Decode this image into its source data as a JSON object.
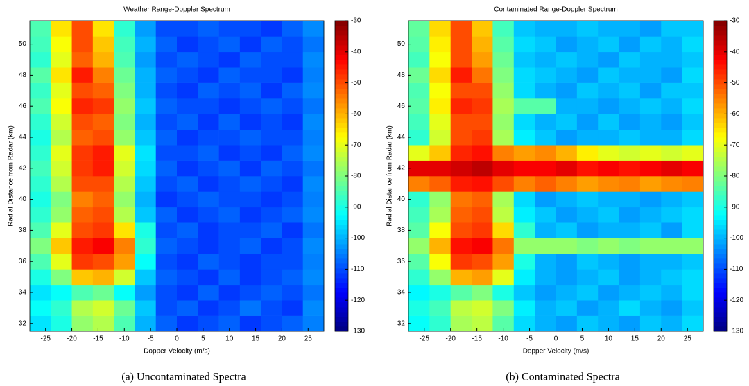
{
  "chart_data": [
    {
      "type": "heatmap",
      "title": "Weather Range-Doppler Spectrum",
      "x_label": "Dopper Velocity (m/s)",
      "y_label": "Radial Distance from Radar (km)",
      "caption": "(a)  Uncontaminated Spectra",
      "x": [
        -26,
        -22,
        -18,
        -14,
        -10,
        -6,
        -2,
        2,
        6,
        10,
        14,
        18,
        22,
        26
      ],
      "y": [
        32,
        33,
        34,
        35,
        36,
        37,
        38,
        39,
        40,
        41,
        42,
        43,
        44,
        45,
        46,
        47,
        48,
        49,
        50,
        51
      ],
      "z": [
        [
          -95,
          -90,
          -78,
          -75,
          -85,
          -100,
          -108,
          -112,
          -110,
          -108,
          -112,
          -110,
          -108,
          -105
        ],
        [
          -92,
          -88,
          -75,
          -72,
          -82,
          -98,
          -110,
          -108,
          -112,
          -110,
          -106,
          -110,
          -112,
          -104
        ],
        [
          -95,
          -92,
          -85,
          -82,
          -92,
          -102,
          -110,
          -112,
          -108,
          -112,
          -110,
          -108,
          -110,
          -106
        ],
        [
          -90,
          -80,
          -62,
          -60,
          -72,
          -98,
          -108,
          -110,
          -112,
          -108,
          -112,
          -110,
          -108,
          -104
        ],
        [
          -85,
          -70,
          -48,
          -50,
          -58,
          -92,
          -110,
          -112,
          -108,
          -110,
          -112,
          -110,
          -110,
          -105
        ],
        [
          -80,
          -62,
          -45,
          -42,
          -55,
          -88,
          -108,
          -110,
          -112,
          -110,
          -108,
          -112,
          -110,
          -104
        ],
        [
          -85,
          -70,
          -50,
          -48,
          -65,
          -90,
          -110,
          -108,
          -112,
          -110,
          -110,
          -108,
          -112,
          -106
        ],
        [
          -88,
          -78,
          -52,
          -50,
          -75,
          -98,
          -108,
          -112,
          -110,
          -108,
          -112,
          -110,
          -108,
          -104
        ],
        [
          -90,
          -80,
          -55,
          -52,
          -78,
          -100,
          -112,
          -110,
          -108,
          -110,
          -110,
          -112,
          -110,
          -105
        ],
        [
          -88,
          -75,
          -50,
          -50,
          -75,
          -98,
          -110,
          -108,
          -112,
          -110,
          -108,
          -110,
          -112,
          -104
        ],
        [
          -86,
          -72,
          -48,
          -45,
          -72,
          -96,
          -108,
          -112,
          -110,
          -108,
          -112,
          -108,
          -110,
          -106
        ],
        [
          -88,
          -70,
          -48,
          -45,
          -70,
          -95,
          -110,
          -110,
          -108,
          -112,
          -110,
          -112,
          -108,
          -104
        ],
        [
          -90,
          -75,
          -52,
          -50,
          -78,
          -98,
          -108,
          -112,
          -110,
          -110,
          -108,
          -110,
          -110,
          -105
        ],
        [
          -88,
          -72,
          -50,
          -52,
          -80,
          -100,
          -110,
          -108,
          -112,
          -108,
          -112,
          -110,
          -112,
          -104
        ],
        [
          -85,
          -68,
          -46,
          -48,
          -78,
          -98,
          -108,
          -110,
          -110,
          -112,
          -110,
          -108,
          -110,
          -106
        ],
        [
          -87,
          -70,
          -50,
          -52,
          -80,
          -100,
          -110,
          -112,
          -108,
          -110,
          -108,
          -112,
          -108,
          -104
        ],
        [
          -84,
          -65,
          -45,
          -55,
          -82,
          -100,
          -108,
          -110,
          -112,
          -108,
          -110,
          -110,
          -112,
          -105
        ],
        [
          -88,
          -70,
          -52,
          -60,
          -85,
          -102,
          -110,
          -108,
          -110,
          -112,
          -108,
          -110,
          -110,
          -104
        ],
        [
          -86,
          -68,
          -50,
          -62,
          -86,
          -100,
          -108,
          -112,
          -110,
          -108,
          -112,
          -108,
          -110,
          -106
        ],
        [
          -85,
          -65,
          -50,
          -65,
          -88,
          -102,
          -110,
          -110,
          -108,
          -110,
          -110,
          -112,
          -108,
          -104
        ]
      ],
      "xlim": [
        -28,
        28
      ],
      "ylim": [
        31.5,
        51.5
      ],
      "xticks": [
        -25,
        -20,
        -15,
        -10,
        -5,
        0,
        5,
        10,
        15,
        20,
        25
      ],
      "yticks": [
        32,
        34,
        36,
        38,
        40,
        42,
        44,
        46,
        48,
        50
      ],
      "clim": [
        -130,
        -30
      ],
      "cticks": [
        -130,
        -120,
        -110,
        -100,
        -90,
        -80,
        -70,
        -60,
        -50,
        -40,
        -30
      ],
      "colormap": "jet"
    },
    {
      "type": "heatmap",
      "title": "Contaminated Range-Doppler Spectrum",
      "x_label": "Dopper Velocity (m/s)",
      "y_label": "Radial Distance from Radar (km)",
      "caption": "(b)  Contaminated Spectra",
      "x": [
        -26,
        -22,
        -18,
        -14,
        -10,
        -6,
        -2,
        2,
        6,
        10,
        14,
        18,
        22,
        26
      ],
      "y": [
        32,
        33,
        34,
        35,
        36,
        37,
        38,
        39,
        40,
        41,
        42,
        43,
        44,
        45,
        46,
        47,
        48,
        49,
        50,
        51
      ],
      "z": [
        [
          -92,
          -88,
          -76,
          -74,
          -84,
          -96,
          -100,
          -102,
          -98,
          -100,
          -102,
          -98,
          -100,
          -96
        ],
        [
          -90,
          -86,
          -74,
          -72,
          -80,
          -94,
          -100,
          -98,
          -102,
          -100,
          -96,
          -100,
          -102,
          -98
        ],
        [
          -93,
          -90,
          -84,
          -80,
          -90,
          -98,
          -102,
          -100,
          -98,
          -102,
          -100,
          -98,
          -100,
          -96
        ],
        [
          -88,
          -78,
          -60,
          -58,
          -70,
          -94,
          -100,
          -102,
          -100,
          -98,
          -102,
          -100,
          -98,
          -96
        ],
        [
          -84,
          -68,
          -48,
          -50,
          -58,
          -90,
          -100,
          -102,
          -98,
          -100,
          -102,
          -100,
          -100,
          -98
        ],
        [
          -78,
          -60,
          -44,
          -42,
          -54,
          -78,
          -78,
          -78,
          -80,
          -78,
          -80,
          -78,
          -78,
          -78
        ],
        [
          -84,
          -68,
          -50,
          -48,
          -64,
          -88,
          -100,
          -98,
          -102,
          -100,
          -100,
          -98,
          -102,
          -96
        ],
        [
          -86,
          -76,
          -52,
          -50,
          -74,
          -94,
          -98,
          -102,
          -100,
          -98,
          -102,
          -100,
          -98,
          -96
        ],
        [
          -88,
          -78,
          -54,
          -52,
          -76,
          -96,
          -102,
          -100,
          -98,
          -100,
          -100,
          -102,
          -100,
          -98
        ],
        [
          -55,
          -52,
          -45,
          -44,
          -50,
          -55,
          -52,
          -55,
          -58,
          -56,
          -55,
          -58,
          -56,
          -55
        ],
        [
          -40,
          -40,
          -38,
          -36,
          -40,
          -42,
          -42,
          -40,
          -44,
          -42,
          -44,
          -42,
          -40,
          -42
        ],
        [
          -70,
          -62,
          -46,
          -44,
          -55,
          -58,
          -56,
          -60,
          -66,
          -70,
          -72,
          -70,
          -72,
          -70
        ],
        [
          -88,
          -72,
          -50,
          -48,
          -76,
          -94,
          -98,
          -102,
          -100,
          -100,
          -98,
          -100,
          -100,
          -96
        ],
        [
          -86,
          -70,
          -50,
          -50,
          -78,
          -96,
          -100,
          -98,
          -102,
          -98,
          -102,
          -100,
          -102,
          -98
        ],
        [
          -84,
          -66,
          -46,
          -48,
          -76,
          -84,
          -84,
          -100,
          -100,
          -102,
          -100,
          -98,
          -100,
          -96
        ],
        [
          -85,
          -68,
          -50,
          -50,
          -78,
          -96,
          -100,
          -102,
          -98,
          -100,
          -98,
          -102,
          -98,
          -98
        ],
        [
          -82,
          -64,
          -45,
          -54,
          -80,
          -96,
          -98,
          -100,
          -102,
          -98,
          -100,
          -100,
          -102,
          -96
        ],
        [
          -86,
          -68,
          -50,
          -58,
          -82,
          -98,
          -100,
          -98,
          -100,
          -102,
          -98,
          -100,
          -100,
          -98
        ],
        [
          -84,
          -66,
          -50,
          -60,
          -84,
          -96,
          -98,
          -102,
          -100,
          -98,
          -102,
          -98,
          -100,
          -96
        ],
        [
          -83,
          -64,
          -50,
          -62,
          -86,
          -98,
          -100,
          -100,
          -98,
          -100,
          -100,
          -102,
          -98,
          -98
        ]
      ],
      "xlim": [
        -28,
        28
      ],
      "ylim": [
        31.5,
        51.5
      ],
      "xticks": [
        -25,
        -20,
        -15,
        -10,
        -5,
        0,
        5,
        10,
        15,
        20,
        25
      ],
      "yticks": [
        32,
        34,
        36,
        38,
        40,
        42,
        44,
        46,
        48,
        50
      ],
      "clim": [
        -130,
        -30
      ],
      "cticks": [
        -130,
        -120,
        -110,
        -100,
        -90,
        -80,
        -70,
        -60,
        -50,
        -40,
        -30
      ],
      "colormap": "jet"
    }
  ]
}
